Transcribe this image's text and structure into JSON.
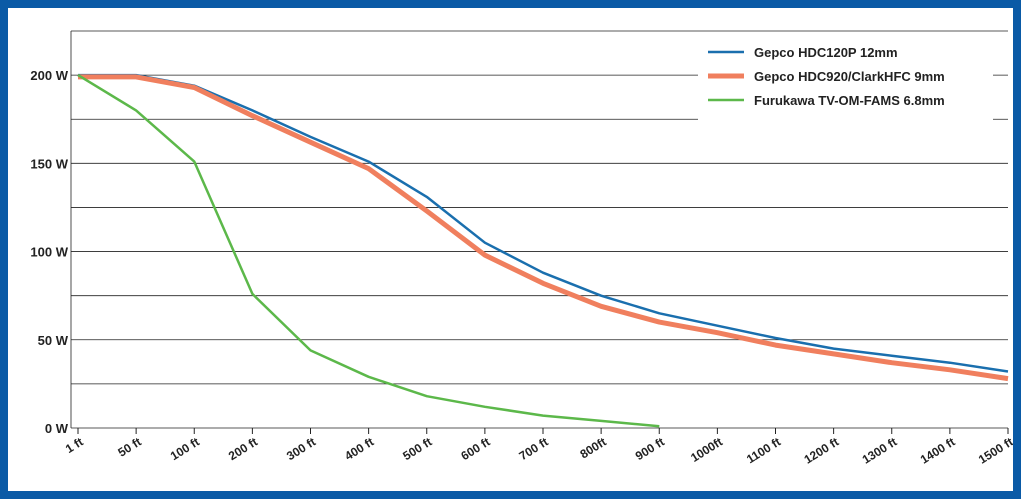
{
  "chart_data": {
    "type": "line",
    "title": "",
    "xlabel": "",
    "ylabel": "",
    "x_tick_labels": [
      "1 ft",
      "50 ft",
      "100 ft",
      "200 ft",
      "300 ft",
      "400 ft",
      "500 ft",
      "600 ft",
      "700 ft",
      "800ft",
      "900 ft",
      "1000ft",
      "1100 ft",
      "1200 ft",
      "1300 ft",
      "1400 ft",
      "1500 ft"
    ],
    "y_tick_labels": [
      "0 W",
      "50 W",
      "100 W",
      "150 W",
      "200 W"
    ],
    "ylim": [
      0,
      225
    ],
    "grid": true,
    "legend_position": "top-right",
    "x_axis_note": "category axis: ticks are evenly spaced regardless of distance value",
    "series": [
      {
        "name": "Gepco HDC120P 12mm",
        "color": "#1a6fae",
        "line_width": 2.5,
        "points": [
          [
            0,
            200
          ],
          [
            1,
            200
          ],
          [
            2,
            194
          ],
          [
            3,
            180
          ],
          [
            4,
            165
          ],
          [
            5,
            151
          ],
          [
            6,
            131
          ],
          [
            7,
            105
          ],
          [
            8,
            88
          ],
          [
            9,
            75
          ],
          [
            10,
            65
          ],
          [
            11,
            58
          ],
          [
            12,
            51
          ],
          [
            13,
            45
          ],
          [
            14,
            41
          ],
          [
            15,
            37
          ],
          [
            16,
            32
          ]
        ]
      },
      {
        "name": "Gepco HDC920/ClarkHFC 9mm",
        "color": "#f07f5e",
        "line_width": 5,
        "points": [
          [
            0,
            199
          ],
          [
            1,
            199
          ],
          [
            2,
            193
          ],
          [
            3,
            177
          ],
          [
            4,
            162
          ],
          [
            5,
            147
          ],
          [
            6,
            123
          ],
          [
            7,
            98
          ],
          [
            8,
            82
          ],
          [
            9,
            69
          ],
          [
            10,
            60
          ],
          [
            11,
            54
          ],
          [
            12,
            47
          ],
          [
            13,
            42
          ],
          [
            14,
            37
          ],
          [
            15,
            33
          ],
          [
            16,
            28
          ]
        ]
      },
      {
        "name": "Furukawa TV-OM-FAMS 6.8mm",
        "color": "#5cb84a",
        "line_width": 2.5,
        "points": [
          [
            0,
            200
          ],
          [
            1,
            180
          ],
          [
            2,
            151
          ],
          [
            3,
            76
          ],
          [
            4,
            44
          ],
          [
            5,
            29
          ],
          [
            6,
            18
          ],
          [
            7,
            12
          ],
          [
            8,
            7
          ],
          [
            9,
            4
          ],
          [
            10,
            1
          ]
        ]
      }
    ]
  }
}
